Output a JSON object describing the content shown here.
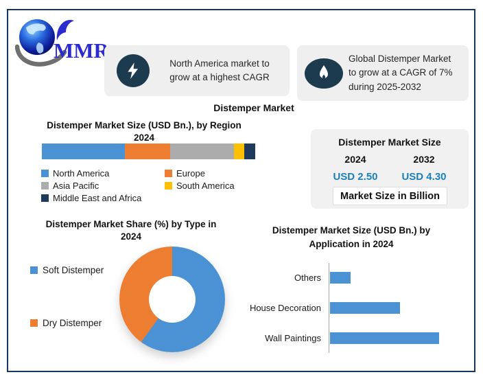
{
  "logo": {
    "text": "MMR"
  },
  "callouts": [
    {
      "icon": "lightning-icon",
      "lines": [
        "North America market to",
        "grow at a highest CAGR"
      ]
    },
    {
      "icon": "flame-icon",
      "lines": [
        "Global Distemper Market",
        "to grow at a CAGR of 7%",
        "during 2025-2032"
      ]
    }
  ],
  "page_title": "Distemper Market",
  "region_chart": {
    "title_line1": "Distemper Market Size  (USD Bn.), by Region",
    "title_line2": "2024",
    "segments": [
      {
        "label": "North America",
        "share_pct": 39,
        "color": "#4B92D4"
      },
      {
        "label": "Europe",
        "share_pct": 21,
        "color": "#ED7D31"
      },
      {
        "label": "Asia Pacific",
        "share_pct": 30,
        "color": "#ACACAC"
      },
      {
        "label": "South America",
        "share_pct": 5,
        "color": "#FFC000"
      },
      {
        "label": "Middle East and Africa",
        "share_pct": 5,
        "color": "#1F3B5C"
      }
    ]
  },
  "market_size_box": {
    "title": "Distemper Market Size",
    "col1": {
      "year": "2024",
      "value": "USD 2.50"
    },
    "col2": {
      "year": "2032",
      "value": "USD 4.30"
    },
    "note": "Market Size in Billion",
    "value_color": "#1A7FC0"
  },
  "type_chart": {
    "title_line1": "Distemper Market Share (%)  by Type in",
    "title_line2": "2024",
    "slices": [
      {
        "label": "Soft Distemper",
        "share_pct": 60,
        "color": "#4B92D4"
      },
      {
        "label": "Dry Distemper",
        "share_pct": 40,
        "color": "#ED7D31"
      }
    ]
  },
  "application_chart": {
    "title_line1": "Distemper Market Size (USD Bn.)  by",
    "title_line2": "Application in 2024",
    "bar_color": "#4B92D4",
    "bars": [
      {
        "label": "Others",
        "value_usd_bn": 0.26
      },
      {
        "label": "House Decoration",
        "value_usd_bn": 0.9
      },
      {
        "label": "Wall Paintings",
        "value_usd_bn": 1.4
      }
    ]
  },
  "chart_data": [
    {
      "type": "bar",
      "subtype": "stacked-horizontal-100pct",
      "title": "Distemper Market Size (USD Bn.), by Region 2024",
      "categories": [
        "North America",
        "Europe",
        "Asia Pacific",
        "South America",
        "Middle East and Africa"
      ],
      "values": [
        39,
        21,
        30,
        5,
        5
      ],
      "unit": "% share of bar length (estimated)",
      "colors": [
        "#4B92D4",
        "#ED7D31",
        "#ACACAC",
        "#FFC000",
        "#1F3B5C"
      ],
      "legend_position": "below",
      "axes": "none"
    },
    {
      "type": "pie",
      "subtype": "donut",
      "title": "Distemper Market Share (%) by Type in 2024",
      "categories": [
        "Soft Distemper",
        "Dry Distemper"
      ],
      "values": [
        60,
        40
      ],
      "unit": "% (estimated from arc angles)",
      "colors": [
        "#4B92D4",
        "#ED7D31"
      ],
      "legend_position": "left",
      "start_angle_deg": 0,
      "direction": "clockwise"
    },
    {
      "type": "bar",
      "subtype": "horizontal",
      "title": "Distemper Market Size (USD Bn.) by Application in 2024",
      "categories": [
        "Others",
        "House Decoration",
        "Wall Paintings"
      ],
      "values": [
        0.26,
        0.9,
        1.4
      ],
      "unit": "USD Bn. (estimated from bar lengths)",
      "color": "#4B92D4",
      "xlabel": "",
      "ylabel": "",
      "grid": false,
      "axis_line": "left vertical only"
    },
    {
      "type": "table",
      "title": "Distemper Market Size",
      "columns": [
        "2024",
        "2032"
      ],
      "values": [
        "USD 2.50",
        "USD 4.30"
      ],
      "note": "Market Size in Billion",
      "cagr_text": "Global Distemper Market to grow at a CAGR of 7% during 2025-2032"
    }
  ]
}
